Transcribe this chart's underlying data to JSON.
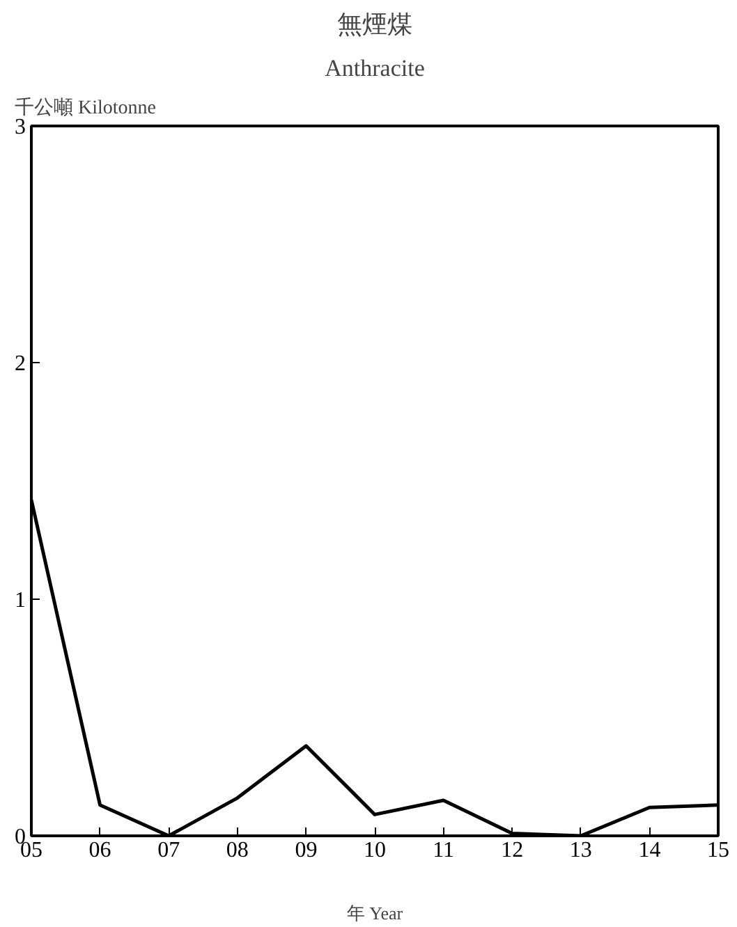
{
  "chart_data": {
    "type": "line",
    "title": "無煙煤",
    "subtitle": "Anthracite",
    "ylabel": "千公噸 Kilotonne",
    "xlabel": "年 Year",
    "categories": [
      "05",
      "06",
      "07",
      "08",
      "09",
      "10",
      "11",
      "12",
      "13",
      "14",
      "15"
    ],
    "series": [
      {
        "color": "#000000",
        "values": [
          1.42,
          0.13,
          0,
          0.16,
          0.38,
          0.09,
          0.15,
          0.01,
          0,
          0.12,
          0.13
        ]
      }
    ],
    "ylim": [
      0,
      3
    ],
    "yticks": [
      0,
      1,
      2,
      3
    ],
    "grid": false,
    "marker": "none",
    "line_style": "solid"
  }
}
